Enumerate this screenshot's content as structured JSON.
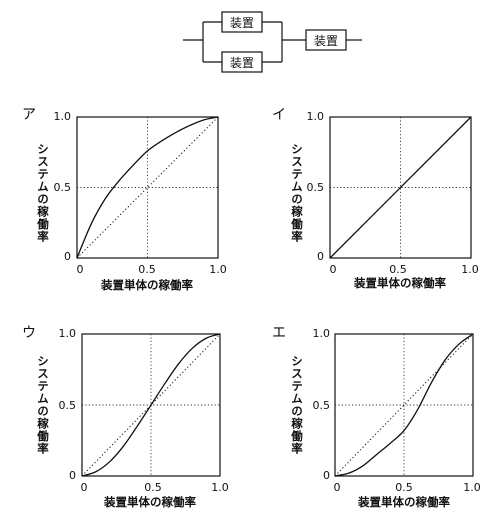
{
  "block_diagram": {
    "device_label": "装置"
  },
  "panels": [
    {
      "id": "a",
      "option": "ア",
      "ylabel": "システムの稼働率",
      "xlabel": "装置単体の稼働率",
      "x_ticks": [
        "0",
        "0.5",
        "1.0"
      ],
      "y_ticks": [
        "0",
        "0.5",
        "1.0"
      ]
    },
    {
      "id": "i",
      "option": "イ",
      "ylabel": "システムの稼働率",
      "xlabel": "装置単体の稼働率",
      "x_ticks": [
        "0",
        "0.5",
        "1.0"
      ],
      "y_ticks": [
        "0",
        "0.5",
        "1.0"
      ]
    },
    {
      "id": "u",
      "option": "ウ",
      "ylabel": "システムの稼働率",
      "xlabel": "装置単体の稼働率",
      "x_ticks": [
        "0",
        "0.5",
        "1.0"
      ],
      "y_ticks": [
        "0",
        "0.5",
        "1.0"
      ]
    },
    {
      "id": "e",
      "option": "エ",
      "ylabel": "システムの稼働率",
      "xlabel": "装置単体の稼働率",
      "x_ticks": [
        "0",
        "0.5",
        "1.0"
      ],
      "y_ticks": [
        "0",
        "0.5",
        "1.0"
      ]
    }
  ],
  "chart_data": [
    {
      "type": "line",
      "option": "ア",
      "xlabel": "装置単体の稼働率",
      "ylabel": "システムの稼働率",
      "xlim": [
        0,
        1
      ],
      "ylim": [
        0,
        1
      ],
      "series": [
        {
          "style": "solid",
          "x": [
            0,
            0.1,
            0.2,
            0.3,
            0.4,
            0.5,
            0.6,
            0.7,
            0.8,
            0.9,
            1.0
          ],
          "y": [
            0,
            0.24,
            0.42,
            0.55,
            0.66,
            0.76,
            0.83,
            0.89,
            0.94,
            0.98,
            1.0
          ]
        },
        {
          "style": "dotted",
          "x": [
            0,
            1
          ],
          "y": [
            0,
            1
          ]
        }
      ]
    },
    {
      "type": "line",
      "option": "イ",
      "xlabel": "装置単体の稼働率",
      "ylabel": "システムの稼働率",
      "xlim": [
        0,
        1
      ],
      "ylim": [
        0,
        1
      ],
      "series": [
        {
          "style": "solid",
          "x": [
            0,
            1
          ],
          "y": [
            0,
            1
          ]
        }
      ]
    },
    {
      "type": "line",
      "option": "ウ",
      "xlabel": "装置単体の稼働率",
      "ylabel": "システムの稼働率",
      "xlim": [
        0,
        1
      ],
      "ylim": [
        0,
        1
      ],
      "series": [
        {
          "style": "solid",
          "x": [
            0,
            0.1,
            0.2,
            0.3,
            0.4,
            0.5,
            0.6,
            0.7,
            0.8,
            0.9,
            1.0
          ],
          "y": [
            0,
            0.03,
            0.1,
            0.21,
            0.35,
            0.5,
            0.65,
            0.79,
            0.9,
            0.97,
            1.0
          ]
        },
        {
          "style": "dotted",
          "x": [
            0,
            1
          ],
          "y": [
            0,
            1
          ]
        }
      ]
    },
    {
      "type": "line",
      "option": "エ",
      "xlabel": "装置単体の稼働率",
      "ylabel": "システムの稼働率",
      "xlim": [
        0,
        1
      ],
      "ylim": [
        0,
        1
      ],
      "series": [
        {
          "style": "solid",
          "x": [
            0,
            0.1,
            0.2,
            0.3,
            0.4,
            0.5,
            0.6,
            0.7,
            0.8,
            0.9,
            1.0
          ],
          "y": [
            0,
            0.02,
            0.07,
            0.15,
            0.23,
            0.32,
            0.47,
            0.66,
            0.82,
            0.93,
            1.0
          ]
        },
        {
          "style": "dotted",
          "x": [
            0,
            1
          ],
          "y": [
            0,
            1
          ]
        }
      ]
    }
  ]
}
